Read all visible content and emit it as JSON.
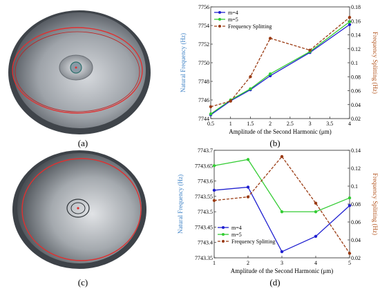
{
  "panels": {
    "a": "(a)",
    "b": "(b)",
    "c": "(c)",
    "d": "(d)"
  },
  "colors": {
    "m4": "#1f1fd0",
    "m5": "#33cc33",
    "split": "#9a3a12",
    "left_axis": "#3a7fc4",
    "right_axis": "#b3541e",
    "shell_dark": "#5a5f66",
    "shell_light": "#c9ccd0",
    "contour": "#e03030"
  },
  "chart_data": [
    {
      "type": "line",
      "x": [
        0.5,
        1,
        1.5,
        2,
        3,
        4
      ],
      "xlabel": "Amplitude of the Second Harmonic (μm)",
      "ylabel": "Natural Frequency (Hz)",
      "y2label": "Frequency Splitting (Hz)",
      "xlim": [
        0.5,
        4
      ],
      "ylim": [
        7744,
        7756
      ],
      "y2lim": [
        0.02,
        0.18
      ],
      "xticks": [
        "0.5",
        "1",
        "1.5",
        "2",
        "2.5",
        "3",
        "3.5",
        "4"
      ],
      "yticks": [
        "7744",
        "7746",
        "7748",
        "7750",
        "7752",
        "7754",
        "7756"
      ],
      "y2ticks": [
        "0.02",
        "0.04",
        "0.06",
        "0.08",
        "0.1",
        "0.12",
        "0.14",
        "0.16",
        "0.18"
      ],
      "legend_position": "top-left",
      "series": [
        {
          "name": "m=4",
          "axis": "left",
          "style": "solid",
          "values": [
            7744.4,
            7745.9,
            7747.1,
            7748.6,
            7751.1,
            7754.1
          ]
        },
        {
          "name": "m=5",
          "axis": "left",
          "style": "solid",
          "values": [
            7744.5,
            7746.0,
            7747.2,
            7748.8,
            7751.2,
            7754.4
          ]
        },
        {
          "name": "Frequency Splitting",
          "axis": "right",
          "style": "dashed",
          "values": [
            0.037,
            0.045,
            0.08,
            0.135,
            0.118,
            0.165
          ]
        }
      ]
    },
    {
      "type": "line",
      "x": [
        1,
        2,
        3,
        4,
        5
      ],
      "xlabel": "Amplitude of the Second Harmonic (μm)",
      "ylabel": "Natural Frequency (Hz)",
      "y2label": "Frequency Splitting (Hz)",
      "xlim": [
        1,
        5
      ],
      "ylim": [
        7743.35,
        7743.7
      ],
      "y2lim": [
        0.02,
        0.14
      ],
      "xticks": [
        "1",
        "2",
        "3",
        "4",
        "5"
      ],
      "yticks": [
        "7743.35",
        "7743.4",
        "7743.45",
        "7743.5",
        "7743.55",
        "7743.6",
        "7743.65",
        "7743.7"
      ],
      "y2ticks": [
        "0.02",
        "0.04",
        "0.06",
        "0.08",
        "0.1",
        "0.12",
        "0.14"
      ],
      "legend_position": "bottom-left",
      "series": [
        {
          "name": "m=4",
          "axis": "left",
          "style": "solid",
          "values": [
            7743.57,
            7743.58,
            7743.37,
            7743.42,
            7743.52
          ]
        },
        {
          "name": "m=5",
          "axis": "left",
          "style": "solid",
          "values": [
            7743.65,
            7743.67,
            7743.5,
            7743.5,
            7743.545
          ]
        },
        {
          "name": "Frequency Splitting",
          "axis": "right",
          "style": "dashed",
          "values": [
            0.084,
            0.088,
            0.133,
            0.081,
            0.025
          ]
        }
      ]
    }
  ]
}
